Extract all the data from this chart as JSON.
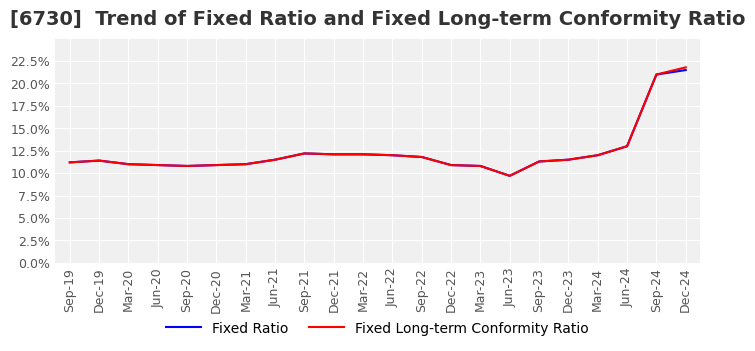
{
  "title": "[6730]  Trend of Fixed Ratio and Fixed Long-term Conformity Ratio",
  "x_labels": [
    "Sep-19",
    "Dec-19",
    "Mar-20",
    "Jun-20",
    "Sep-20",
    "Dec-20",
    "Mar-21",
    "Jun-21",
    "Sep-21",
    "Dec-21",
    "Mar-22",
    "Jun-22",
    "Sep-22",
    "Dec-22",
    "Mar-23",
    "Jun-23",
    "Sep-23",
    "Dec-23",
    "Mar-24",
    "Jun-24",
    "Sep-24",
    "Dec-24"
  ],
  "fixed_ratio": [
    11.2,
    11.4,
    11.0,
    10.9,
    10.8,
    10.9,
    11.0,
    11.5,
    12.2,
    12.1,
    12.1,
    12.0,
    11.8,
    10.9,
    10.8,
    9.7,
    11.3,
    11.5,
    12.0,
    13.0,
    21.0,
    21.5
  ],
  "fixed_lt_ratio": [
    11.2,
    11.4,
    11.0,
    10.9,
    10.8,
    10.9,
    11.0,
    11.5,
    12.2,
    12.1,
    12.1,
    12.0,
    11.8,
    10.9,
    10.8,
    9.7,
    11.3,
    11.5,
    12.0,
    13.0,
    21.0,
    21.8
  ],
  "fixed_ratio_color": "#0000ff",
  "fixed_lt_ratio_color": "#ff0000",
  "ylim": [
    0.0,
    25.0
  ],
  "yticks": [
    0.0,
    2.5,
    5.0,
    7.5,
    10.0,
    12.5,
    15.0,
    17.5,
    20.0,
    22.5
  ],
  "background_color": "#ffffff",
  "plot_bg_color": "#f0f0f0",
  "grid_color": "#ffffff",
  "title_fontsize": 14,
  "tick_fontsize": 9,
  "legend_fontsize": 10
}
